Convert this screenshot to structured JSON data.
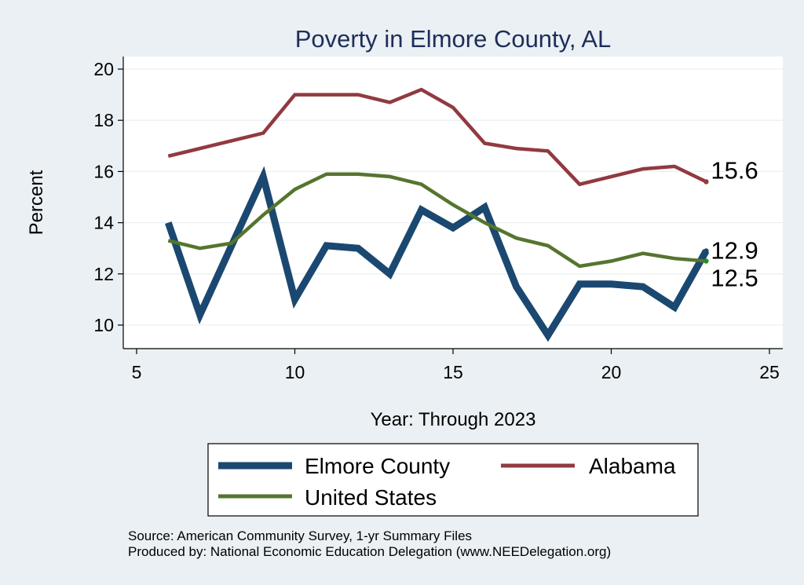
{
  "chart_data": {
    "type": "line",
    "title": "Poverty in Elmore County, AL",
    "xlabel": "Year: Through 2023",
    "ylabel": "Percent",
    "xlim": [
      5,
      25
    ],
    "ylim": [
      9,
      20.6
    ],
    "xticks": [
      5,
      10,
      15,
      20,
      25
    ],
    "yticks": [
      10,
      12,
      14,
      16,
      18,
      20
    ],
    "grid": true,
    "series": [
      {
        "name": "Elmore County",
        "color": "#1b4870",
        "x": [
          6,
          7,
          8,
          9,
          10,
          11,
          12,
          13,
          14,
          15,
          16,
          17,
          18,
          19,
          20,
          21,
          22,
          23
        ],
        "values": [
          14.0,
          10.4,
          13.1,
          15.8,
          11.0,
          13.1,
          13.0,
          12.0,
          14.5,
          13.8,
          14.6,
          11.5,
          9.6,
          11.6,
          11.6,
          11.5,
          10.7,
          12.9
        ],
        "end_label": "12.9"
      },
      {
        "name": "Alabama",
        "color": "#913a40",
        "x": [
          6,
          7,
          8,
          9,
          10,
          11,
          12,
          13,
          14,
          15,
          16,
          17,
          18,
          19,
          20,
          21,
          22,
          23
        ],
        "values": [
          16.6,
          16.9,
          17.2,
          17.5,
          19.0,
          19.0,
          19.0,
          18.7,
          19.2,
          18.5,
          17.1,
          16.9,
          16.8,
          15.5,
          15.8,
          16.1,
          16.2,
          15.6
        ],
        "end_label": "15.6"
      },
      {
        "name": "United States",
        "color": "#55752f",
        "x": [
          6,
          7,
          8,
          9,
          10,
          11,
          12,
          13,
          14,
          15,
          16,
          17,
          18,
          19,
          20,
          21,
          22,
          23
        ],
        "values": [
          13.3,
          13.0,
          13.2,
          14.3,
          15.3,
          15.9,
          15.9,
          15.8,
          15.5,
          14.7,
          14.0,
          13.4,
          13.1,
          12.3,
          12.5,
          12.8,
          12.6,
          12.5
        ],
        "end_label": "12.5"
      }
    ],
    "legend_entries": [
      "Elmore County",
      "Alabama",
      "United States"
    ],
    "legend_position": "bottom"
  },
  "source_line": "Source: American Community Survey, 1-yr Summary Files",
  "produced_line": "Produced by: National Economic Education Delegation (www.NEEDelegation.org)",
  "colors": {
    "background": "#eaf0f3",
    "plot_background": "#ffffff",
    "grid": "#eaf0f3",
    "title": "#1f2e5a"
  }
}
